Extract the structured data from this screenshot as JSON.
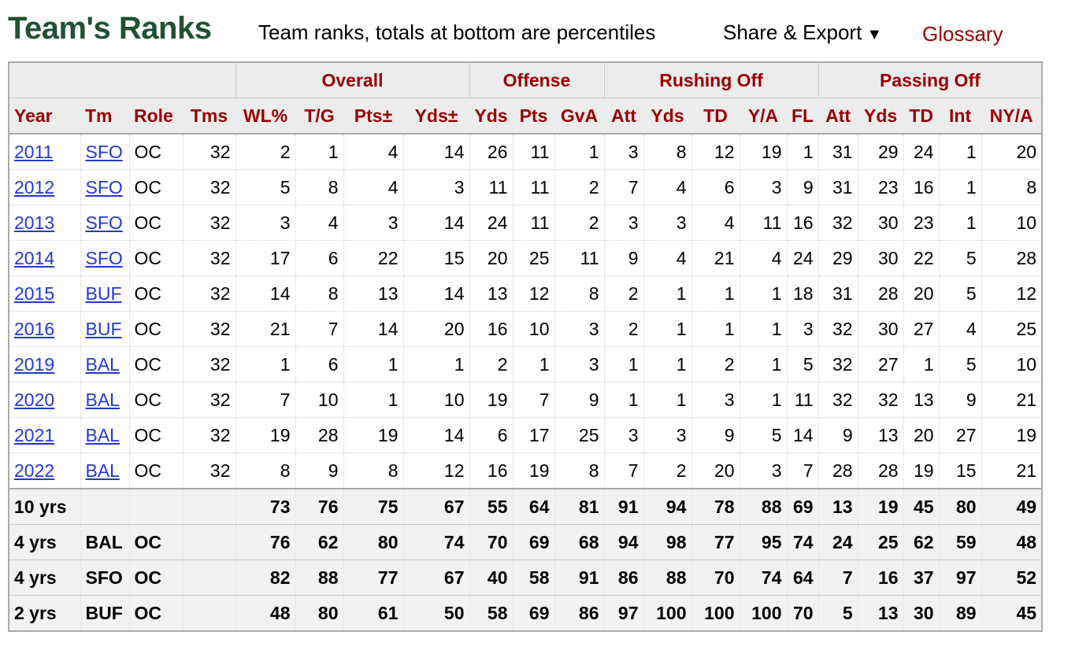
{
  "page": {
    "title": "Team's Ranks",
    "subtitle": "Team ranks, totals at bottom are percentiles",
    "share_label": "Share & Export",
    "share_arrow": "▼",
    "glossary_label": "Glossary"
  },
  "table": {
    "groups": [
      "",
      "Overall",
      "Offense",
      "Rushing Off",
      "Passing Off"
    ],
    "columns": [
      "Year",
      "Tm",
      "Role",
      "Tms",
      "WL%",
      "T/G",
      "Pts±",
      "Yds±",
      "Yds",
      "Pts",
      "GvA",
      "Att",
      "Yds",
      "TD",
      "Y/A",
      "FL",
      "Att",
      "Yds",
      "TD",
      "Int",
      "NY/A"
    ],
    "rows": [
      [
        "2011",
        "SFO",
        "OC",
        "32",
        "2",
        "1",
        "4",
        "14",
        "26",
        "11",
        "1",
        "3",
        "8",
        "12",
        "19",
        "1",
        "31",
        "29",
        "24",
        "1",
        "20"
      ],
      [
        "2012",
        "SFO",
        "OC",
        "32",
        "5",
        "8",
        "4",
        "3",
        "11",
        "11",
        "2",
        "7",
        "4",
        "6",
        "3",
        "9",
        "31",
        "23",
        "16",
        "1",
        "8"
      ],
      [
        "2013",
        "SFO",
        "OC",
        "32",
        "3",
        "4",
        "3",
        "14",
        "24",
        "11",
        "2",
        "3",
        "3",
        "4",
        "11",
        "16",
        "32",
        "30",
        "23",
        "1",
        "10"
      ],
      [
        "2014",
        "SFO",
        "OC",
        "32",
        "17",
        "6",
        "22",
        "15",
        "20",
        "25",
        "11",
        "9",
        "4",
        "21",
        "4",
        "24",
        "29",
        "30",
        "22",
        "5",
        "28"
      ],
      [
        "2015",
        "BUF",
        "OC",
        "32",
        "14",
        "8",
        "13",
        "14",
        "13",
        "12",
        "8",
        "2",
        "1",
        "1",
        "1",
        "18",
        "31",
        "28",
        "20",
        "5",
        "12"
      ],
      [
        "2016",
        "BUF",
        "OC",
        "32",
        "21",
        "7",
        "14",
        "20",
        "16",
        "10",
        "3",
        "2",
        "1",
        "1",
        "1",
        "3",
        "32",
        "30",
        "27",
        "4",
        "25"
      ],
      [
        "2019",
        "BAL",
        "OC",
        "32",
        "1",
        "6",
        "1",
        "1",
        "2",
        "1",
        "3",
        "1",
        "1",
        "2",
        "1",
        "5",
        "32",
        "27",
        "1",
        "5",
        "10"
      ],
      [
        "2020",
        "BAL",
        "OC",
        "32",
        "7",
        "10",
        "1",
        "10",
        "19",
        "7",
        "9",
        "1",
        "1",
        "3",
        "1",
        "11",
        "32",
        "32",
        "13",
        "9",
        "21"
      ],
      [
        "2021",
        "BAL",
        "OC",
        "32",
        "19",
        "28",
        "19",
        "14",
        "6",
        "17",
        "25",
        "3",
        "3",
        "9",
        "5",
        "14",
        "9",
        "13",
        "20",
        "27",
        "19"
      ],
      [
        "2022",
        "BAL",
        "OC",
        "32",
        "8",
        "9",
        "8",
        "12",
        "16",
        "19",
        "8",
        "7",
        "2",
        "20",
        "3",
        "7",
        "28",
        "28",
        "19",
        "15",
        "21"
      ]
    ],
    "totals": [
      [
        "10 yrs",
        "",
        "",
        "",
        "73",
        "76",
        "75",
        "67",
        "55",
        "64",
        "81",
        "91",
        "94",
        "78",
        "88",
        "69",
        "13",
        "19",
        "45",
        "80",
        "49"
      ],
      [
        "4 yrs",
        "BAL",
        "OC",
        "",
        "76",
        "62",
        "80",
        "74",
        "70",
        "69",
        "68",
        "94",
        "98",
        "77",
        "95",
        "74",
        "24",
        "25",
        "62",
        "59",
        "48"
      ],
      [
        "4 yrs",
        "SFO",
        "OC",
        "",
        "82",
        "88",
        "77",
        "67",
        "40",
        "58",
        "91",
        "86",
        "88",
        "70",
        "74",
        "64",
        "7",
        "16",
        "37",
        "97",
        "52"
      ],
      [
        "2 yrs",
        "BUF",
        "OC",
        "",
        "48",
        "80",
        "61",
        "50",
        "58",
        "69",
        "86",
        "97",
        "100",
        "100",
        "100",
        "70",
        "5",
        "13",
        "30",
        "89",
        "45"
      ]
    ]
  }
}
